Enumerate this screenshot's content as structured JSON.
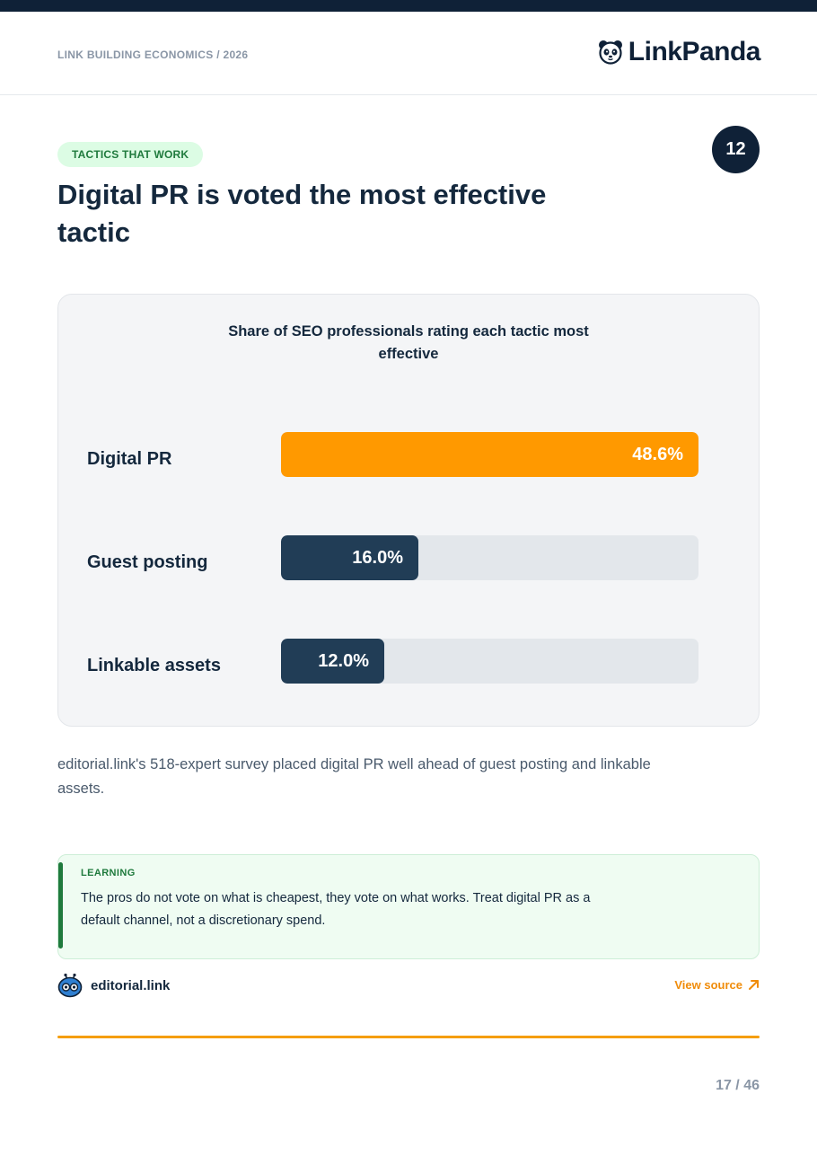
{
  "header": {
    "eyebrow": "LINK BUILDING ECONOMICS / 2026",
    "brand_name": "LinkPanda",
    "brand_icon": "panda-icon"
  },
  "section": {
    "tag": "TACTICS THAT WORK",
    "page_badge": "12",
    "headline": "Digital PR is voted the most effective tactic"
  },
  "chart_data": {
    "type": "bar",
    "orientation": "horizontal",
    "title": "Share of SEO professionals rating each tactic most effective",
    "categories": [
      "Digital PR",
      "Guest posting",
      "Linkable assets"
    ],
    "values": [
      48.6,
      16.0,
      12.0
    ],
    "value_labels": [
      "48.6%",
      "16.0%",
      "12.0%"
    ],
    "xlim": [
      0,
      48.6
    ],
    "colors": {
      "highlight": "#ff9900",
      "default": "#213d56",
      "track": "#e3e7eb"
    }
  },
  "body": {
    "text": "editorial.link's 518-expert survey placed digital PR well ahead of guest posting and linkable assets."
  },
  "learning": {
    "label": "LEARNING",
    "text": "The pros do not vote on what is cheapest, they vote on what works. Treat digital PR as a default channel, not a discretionary spend."
  },
  "source": {
    "name": "editorial.link",
    "icon": "robot-icon",
    "link_label": "View source",
    "link_icon": "arrow-up-right-icon"
  },
  "footer": {
    "page": "17 / 46"
  },
  "colors": {
    "navy": "#0f2137",
    "accent": "#f59e0b",
    "green": "#1f7a3d"
  }
}
